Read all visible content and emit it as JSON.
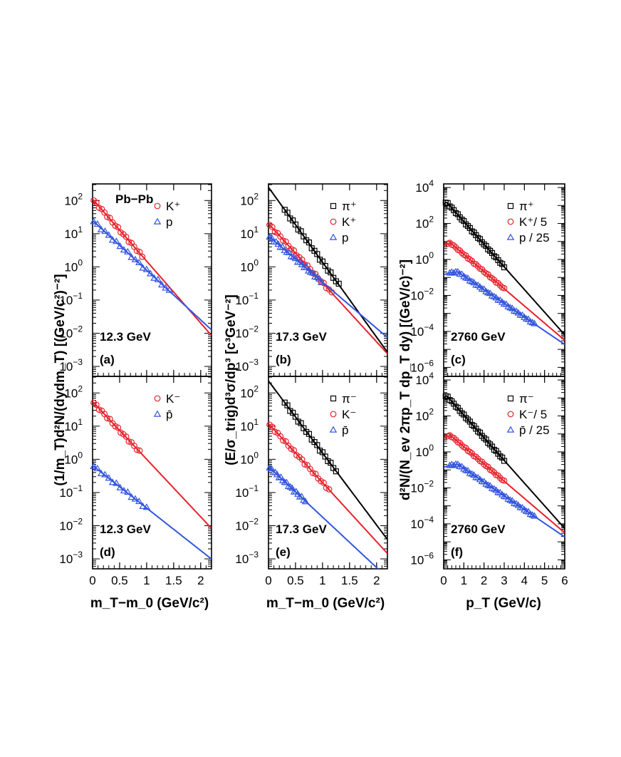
{
  "figure": {
    "ylabel_left": "(1/m_T)d²N/(dydm_T) [(GeV/c²)⁻²]",
    "ylabel_mid": "(E/σ_trig)d³σ/dp³ [c³GeV⁻²]",
    "ylabel_right": "d²N/(N_ev 2πp_T dp_T dy) [(GeV/c)⁻²]",
    "xlabel_mt": "m_T−m_0 (GeV/c²)",
    "xlabel_pt": "p_T (GeV/c)",
    "system_label": "Pb−Pb"
  },
  "chart_data": [
    {
      "id": "a",
      "type": "scatter",
      "panel_label": "(a)",
      "energy": "12.3 GeV",
      "xlim": [
        0,
        2.2
      ],
      "ylim_exp": [
        -3.3,
        2.5
      ],
      "xticks": [
        0,
        0.5,
        1,
        1.5,
        2
      ],
      "xticklabels": [
        "0",
        "0.5",
        "1",
        "1.5",
        "2"
      ],
      "yticks_exp": [
        -3,
        -2,
        -1,
        0,
        1,
        2
      ],
      "series": [
        {
          "name": "K+",
          "label": "K⁺",
          "color": "#e8202a",
          "marker": "circle",
          "amp": 110,
          "slope": 4.3,
          "xmax": 0.95,
          "step": 0.05,
          "curve_to": 2.2
        },
        {
          "name": "p",
          "label": "p",
          "color": "#3355dd",
          "marker": "triangle",
          "amp": 25,
          "slope": 3.45,
          "xmax": 1.45,
          "step": 0.07,
          "curve_to": 2.2
        }
      ]
    },
    {
      "id": "b",
      "type": "scatter",
      "panel_label": "(b)",
      "energy": "17.3 GeV",
      "xlim": [
        0,
        2.2
      ],
      "ylim_exp": [
        -3.3,
        2.5
      ],
      "xticks": [
        0,
        0.5,
        1,
        1.5,
        2
      ],
      "xticklabels": [
        "0",
        "0.5",
        "1",
        "1.5",
        "2"
      ],
      "yticks_exp": [
        -3,
        -2,
        -1,
        0,
        1,
        2
      ],
      "series": [
        {
          "name": "pi+",
          "label": "π⁺",
          "color": "#000000",
          "marker": "square",
          "amp": 250,
          "slope": 5.2,
          "xmin": 0.3,
          "xmax": 1.3,
          "step": 0.05,
          "curve_to": 2.2
        },
        {
          "name": "K+",
          "label": "K⁺",
          "color": "#e8202a",
          "marker": "circle",
          "amp": 20,
          "slope": 4.1,
          "xmax": 1.2,
          "step": 0.05,
          "curve_to": 2.2
        },
        {
          "name": "p",
          "label": "p",
          "color": "#3355dd",
          "marker": "triangle",
          "amp": 8.5,
          "slope": 3.2,
          "xmax": 1.0,
          "step": 0.04,
          "curve_to": 2.2
        }
      ]
    },
    {
      "id": "c",
      "type": "scatter",
      "panel_label": "(c)",
      "energy": "2760 GeV",
      "xlim": [
        0,
        6
      ],
      "ylim_exp": [
        -6.5,
        4.2
      ],
      "xticks": [
        0,
        1,
        2,
        3,
        4,
        5,
        6
      ],
      "xticklabels": [
        "0",
        "1",
        "2",
        "3",
        "4",
        "5",
        "6"
      ],
      "yticks_exp": [
        -6,
        -4,
        -2,
        0,
        2,
        4
      ],
      "series": [
        {
          "name": "pi+",
          "label": "π⁺",
          "color": "#000000",
          "marker": "square",
          "peak": 1500,
          "peak_x": 0.15,
          "slope": 2.9,
          "xmin": 0.1,
          "xmax": 3.0,
          "step": 0.1,
          "curve_to": 6
        },
        {
          "name": "K+/5",
          "label": "K⁺/ 5",
          "color": "#e8202a",
          "marker": "circle",
          "peak": 8,
          "peak_x": 0.35,
          "slope": 2.2,
          "xmin": 0.2,
          "xmax": 3.0,
          "step": 0.1,
          "curve_to": 6
        },
        {
          "name": "p/25",
          "label": "p  / 25",
          "color": "#3355dd",
          "marker": "triangle",
          "peak": 0.2,
          "peak_x": 0.7,
          "slope": 1.75,
          "xmin": 0.3,
          "xmax": 4.5,
          "step": 0.1,
          "curve_to": 6
        }
      ]
    },
    {
      "id": "d",
      "type": "scatter",
      "panel_label": "(d)",
      "energy": "12.3 GeV",
      "xlim": [
        0,
        2.2
      ],
      "ylim_exp": [
        -3.3,
        2.5
      ],
      "xticks": [
        0,
        0.5,
        1,
        1.5,
        2
      ],
      "xticklabels": [
        "0",
        "0.5",
        "1",
        "1.5",
        "2"
      ],
      "yticks_exp": [
        -3,
        -2,
        -1,
        0,
        1,
        2
      ],
      "series": [
        {
          "name": "K-",
          "label": "K⁻",
          "color": "#e8202a",
          "marker": "circle",
          "amp": 55,
          "slope": 4.0,
          "xmax": 0.9,
          "step": 0.05,
          "curve_to": 2.2
        },
        {
          "name": "pbar",
          "label": "p̄",
          "color": "#3355dd",
          "marker": "triangle",
          "amp": 0.65,
          "slope": 2.95,
          "xmax": 1.0,
          "step": 0.07,
          "curve_to": 2.2
        }
      ]
    },
    {
      "id": "e",
      "type": "scatter",
      "panel_label": "(e)",
      "energy": "17.3 GeV",
      "xlim": [
        0,
        2.2
      ],
      "ylim_exp": [
        -3.3,
        2.5
      ],
      "xticks": [
        0,
        0.5,
        1,
        1.5,
        2
      ],
      "xticklabels": [
        "0",
        "0.5",
        "1",
        "1.5",
        "2"
      ],
      "yticks_exp": [
        -3,
        -2,
        -1,
        0,
        1,
        2
      ],
      "series": [
        {
          "name": "pi-",
          "label": "π⁻",
          "color": "#000000",
          "marker": "square",
          "amp": 230,
          "slope": 5.0,
          "xmin": 0.3,
          "xmax": 1.25,
          "step": 0.05,
          "curve_to": 2.2
        },
        {
          "name": "K-",
          "label": "K⁻",
          "color": "#e8202a",
          "marker": "circle",
          "amp": 12,
          "slope": 4.1,
          "xmax": 1.15,
          "step": 0.05,
          "curve_to": 2.2
        },
        {
          "name": "pbar",
          "label": "p̄",
          "color": "#3355dd",
          "marker": "triangle",
          "amp": 0.6,
          "slope": 3.5,
          "xmax": 0.7,
          "step": 0.035,
          "curve_to": 2.2
        }
      ]
    },
    {
      "id": "f",
      "type": "scatter",
      "panel_label": "(f)",
      "energy": "2760 GeV",
      "xlim": [
        0,
        6
      ],
      "ylim_exp": [
        -6.5,
        4.2
      ],
      "xticks": [
        0,
        1,
        2,
        3,
        4,
        5,
        6
      ],
      "xticklabels": [
        "0",
        "1",
        "2",
        "3",
        "4",
        "5",
        "6"
      ],
      "yticks_exp": [
        -6,
        -4,
        -2,
        0,
        2,
        4
      ],
      "series": [
        {
          "name": "pi-",
          "label": "π⁻",
          "color": "#000000",
          "marker": "square",
          "peak": 1300,
          "peak_x": 0.15,
          "slope": 2.9,
          "xmin": 0.1,
          "xmax": 3.0,
          "step": 0.1,
          "curve_to": 6
        },
        {
          "name": "K-/5",
          "label": "K⁻/ 5",
          "color": "#e8202a",
          "marker": "circle",
          "peak": 8,
          "peak_x": 0.35,
          "slope": 2.2,
          "xmin": 0.2,
          "xmax": 3.0,
          "step": 0.1,
          "curve_to": 6
        },
        {
          "name": "pbar/25",
          "label": "p̄  / 25",
          "color": "#3355dd",
          "marker": "triangle",
          "peak": 0.2,
          "peak_x": 0.7,
          "slope": 1.75,
          "xmin": 0.3,
          "xmax": 4.5,
          "step": 0.1,
          "curve_to": 6
        }
      ]
    }
  ]
}
